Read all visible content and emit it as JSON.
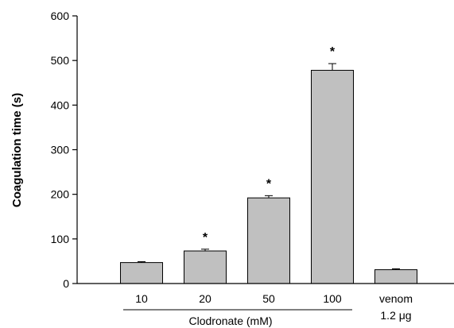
{
  "chart_data": {
    "type": "bar",
    "categories": [
      "10",
      "20",
      "50",
      "100",
      "venom"
    ],
    "category_sublabels": [
      "",
      "",
      "",
      "",
      "1.2 μg"
    ],
    "values": [
      47,
      73,
      192,
      478,
      31
    ],
    "errors": [
      2,
      4,
      5,
      15,
      2
    ],
    "significance": [
      "",
      "*",
      "*",
      "*",
      ""
    ],
    "ylabel": "Coagulation time (s)",
    "group_label": "Clodronate (mM)",
    "group_categories": [
      "10",
      "20",
      "50",
      "100"
    ],
    "ylim": [
      0,
      600
    ],
    "yticks": [
      "0",
      "100",
      "200",
      "300",
      "400",
      "500",
      "600"
    ],
    "bar_color": "#c0c0c0",
    "bar_edge_color": "#000000",
    "grid": false,
    "legend": "none"
  }
}
